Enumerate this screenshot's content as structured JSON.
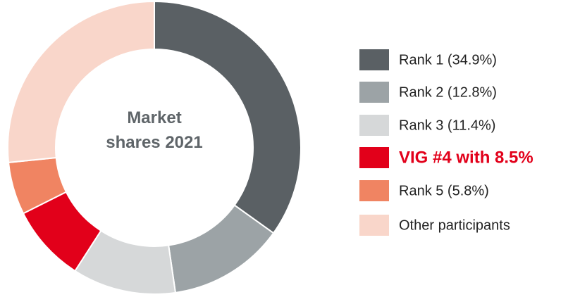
{
  "chart_data": {
    "type": "donut",
    "title": "Market shares 2021",
    "categories": [
      "Rank 1 (34.9%)",
      "Rank 2 (12.8%)",
      "Rank 3 (11.4%)",
      "VIG #4 with 8.5%",
      "Rank 5 (5.8%)",
      "Other participants"
    ],
    "values": [
      34.9,
      12.8,
      11.4,
      8.5,
      5.8,
      26.6
    ],
    "colors": [
      "#5a6064",
      "#9ca3a6",
      "#d6d8d9",
      "#e2001a",
      "#f08462",
      "#f9d6ca"
    ]
  }
}
